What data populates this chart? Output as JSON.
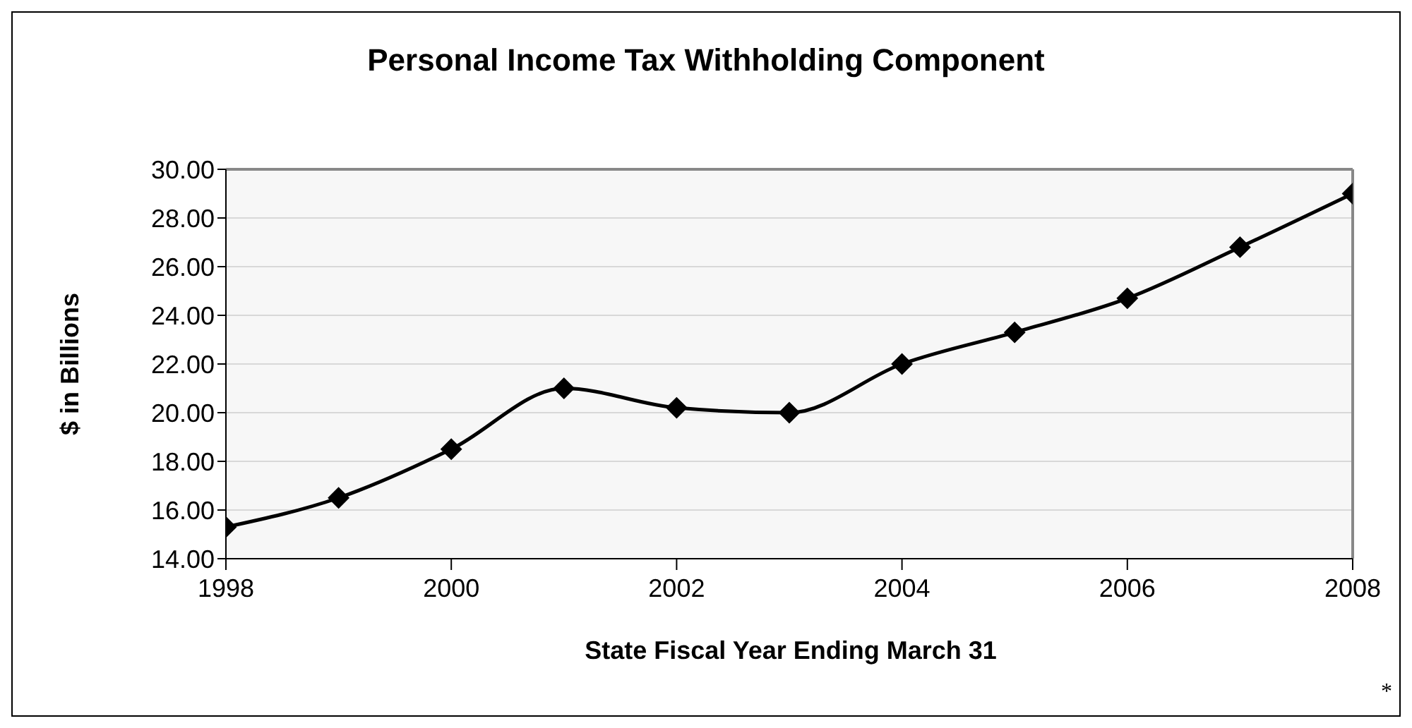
{
  "chart_data": {
    "type": "line",
    "title": "Personal Income Tax Withholding Component",
    "xlabel": "State Fiscal Year Ending March 31",
    "ylabel": "$ in Billions",
    "annotations": [
      "*"
    ],
    "x": [
      1998,
      1999,
      2000,
      2001,
      2002,
      2003,
      2004,
      2005,
      2006,
      2007,
      2008
    ],
    "series": [
      {
        "color": "#000000",
        "values": [
          15.3,
          16.5,
          18.5,
          21.0,
          20.2,
          20.0,
          22.0,
          23.3,
          24.7,
          26.8,
          29.0
        ]
      }
    ],
    "xlim": [
      1998,
      2008
    ],
    "xticks": [
      1998,
      2000,
      2002,
      2004,
      2006,
      2008
    ],
    "ylim": [
      14,
      30
    ],
    "yticks": [
      {
        "value": 14,
        "label": "14.00"
      },
      {
        "value": 16,
        "label": "16.00"
      },
      {
        "value": 18,
        "label": "18.00"
      },
      {
        "value": 20,
        "label": "20.00"
      },
      {
        "value": 22,
        "label": "22.00"
      },
      {
        "value": 24,
        "label": "24.00"
      },
      {
        "value": 26,
        "label": "26.00"
      },
      {
        "value": 28,
        "label": "28.00"
      },
      {
        "value": 30,
        "label": "30.00"
      }
    ],
    "grid": "y",
    "marker": "diamond",
    "line_style": "solid",
    "legend": false
  }
}
